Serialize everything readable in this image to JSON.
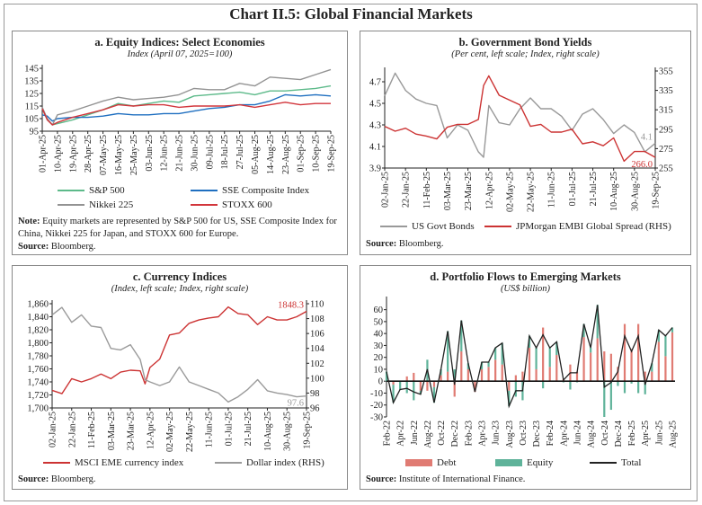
{
  "title": "Chart II.5: Global Financial Markets",
  "chart_data": [
    {
      "id": "a",
      "type": "line",
      "title": "a. Equity Indices: Select Economies",
      "subtitle": "Index (April 07, 2025=100)",
      "ylim": [
        95,
        145
      ],
      "yticks": [
        95,
        105,
        115,
        125,
        135,
        145
      ],
      "xticks": [
        "01-Apr-25",
        "10-Apr-25",
        "19-Apr-25",
        "28-Apr-25",
        "07-May-25",
        "16-May-25",
        "25-May-25",
        "03-Jun-25",
        "12-Jun-25",
        "21-Jun-25",
        "30-Jun-25",
        "09-Jul-25",
        "18-Jul-25",
        "27-Jul-25",
        "05-Aug-25",
        "14-Aug-25",
        "23-Aug-25",
        "01-Sep-25",
        "10-Sep-25",
        "19-Sep-25"
      ],
      "x": [
        "01-Apr-25",
        "04-Apr-25",
        "07-Apr-25",
        "10-Apr-25",
        "19-Apr-25",
        "28-Apr-25",
        "07-May-25",
        "16-May-25",
        "25-May-25",
        "03-Jun-25",
        "12-Jun-25",
        "21-Jun-25",
        "30-Jun-25",
        "09-Jul-25",
        "18-Jul-25",
        "27-Jul-25",
        "05-Aug-25",
        "14-Aug-25",
        "23-Aug-25",
        "01-Sep-25",
        "10-Sep-25",
        "19-Sep-25"
      ],
      "series": [
        {
          "name": "S&P 500",
          "color": "#5dba8a",
          "axis": "left",
          "values": [
            113,
            104,
            100,
            101,
            104,
            108,
            112,
            117,
            115,
            117,
            119,
            118,
            123,
            124,
            125,
            126,
            124,
            127,
            127,
            128,
            129,
            131
          ]
        },
        {
          "name": "SSE Composite Index",
          "color": "#1f6fc0",
          "axis": "left",
          "values": [
            108,
            107,
            103,
            105,
            106,
            106,
            107,
            109,
            108,
            108,
            109,
            109,
            111,
            113,
            114,
            116,
            116,
            119,
            124,
            123,
            124,
            123
          ]
        },
        {
          "name": "Nikkei 225",
          "color": "#939393",
          "axis": "left",
          "values": [
            114,
            105,
            100,
            108,
            111,
            115,
            119,
            122,
            120,
            121,
            122,
            124,
            129,
            128,
            128,
            133,
            131,
            138,
            137,
            136,
            140,
            144
          ]
        },
        {
          "name": "STOXX 600",
          "color": "#d2363c",
          "axis": "left",
          "values": [
            113,
            104,
            100,
            102,
            106,
            109,
            112,
            116,
            115,
            116,
            116,
            114,
            115,
            115,
            115,
            116,
            114,
            116,
            118,
            116,
            117,
            117
          ]
        }
      ],
      "note_label": "Note:",
      "note": "Equity markets are represented by S&P 500 for US, SSE Composite Index for China, Nikkei 225 for Japan, and STOXX 600 for Europe.",
      "source_label": "Source:",
      "source": "Bloomberg."
    },
    {
      "id": "b",
      "type": "line",
      "title": "b. Government Bond Yields",
      "subtitle": "(Per cent, left scale; Index, right scale)",
      "ylim": [
        3.9,
        4.8
      ],
      "yticks": [
        3.9,
        4.1,
        4.3,
        4.5,
        4.7
      ],
      "y2lim": [
        255,
        355
      ],
      "y2ticks": [
        255,
        275,
        295,
        315,
        335,
        355
      ],
      "xticks": [
        "02-Jan-25",
        "22-Jan-25",
        "11-Feb-25",
        "03-Mar-25",
        "23-Mar-25",
        "12-Apr-25",
        "02-May-25",
        "22-May-25",
        "11-Jun-25",
        "01-Jul-25",
        "21-Jul-25",
        "10-Aug-25",
        "30-Aug-25",
        "19-Sep-25"
      ],
      "x": [
        "02-Jan-25",
        "12-Jan-25",
        "22-Jan-25",
        "01-Feb-25",
        "11-Feb-25",
        "21-Feb-25",
        "03-Mar-25",
        "13-Mar-25",
        "23-Mar-25",
        "02-Apr-25",
        "07-Apr-25",
        "12-Apr-25",
        "22-Apr-25",
        "02-May-25",
        "12-May-25",
        "22-May-25",
        "01-Jun-25",
        "11-Jun-25",
        "21-Jun-25",
        "01-Jul-25",
        "11-Jul-25",
        "21-Jul-25",
        "31-Jul-25",
        "10-Aug-25",
        "20-Aug-25",
        "30-Aug-25",
        "09-Sep-25",
        "19-Sep-25"
      ],
      "series": [
        {
          "name": "US Govt Bonds",
          "color": "#999999",
          "axis": "left",
          "end_label": "4.1",
          "values": [
            4.57,
            4.78,
            4.62,
            4.54,
            4.5,
            4.48,
            4.18,
            4.3,
            4.25,
            4.05,
            4.0,
            4.48,
            4.32,
            4.3,
            4.45,
            4.55,
            4.45,
            4.45,
            4.38,
            4.25,
            4.4,
            4.45,
            4.35,
            4.22,
            4.3,
            4.23,
            4.05,
            4.13
          ]
        },
        {
          "name": "JPMorgan EMBI Global Spread (RHS)",
          "color": "#cc3333",
          "axis": "right",
          "end_label": "266.0",
          "values": [
            298,
            293,
            296,
            290,
            288,
            285,
            297,
            300,
            300,
            305,
            340,
            350,
            330,
            325,
            320,
            298,
            300,
            292,
            292,
            295,
            280,
            282,
            278,
            286,
            262,
            272,
            272,
            266
          ]
        }
      ],
      "source_label": "Source:",
      "source": "Bloomberg."
    },
    {
      "id": "c",
      "type": "line",
      "title": "c. Currency Indices",
      "subtitle": "(Index, left scale; Index, right scale)",
      "ylim": [
        1700,
        1860
      ],
      "yticks": [
        "1,700",
        "1,720",
        "1,740",
        "1,760",
        "1,780",
        "1,800",
        "1,820",
        "1,840",
        "1,860"
      ],
      "y2lim": [
        96,
        110
      ],
      "y2ticks": [
        96,
        98,
        100,
        102,
        104,
        106,
        108,
        110
      ],
      "xticks": [
        "02-Jan-25",
        "22-Jan-25",
        "11-Feb-25",
        "03-Mar-25",
        "23-Mar-25",
        "12-Apr-25",
        "02-May-25",
        "22-May-25",
        "11-Jun-25",
        "01-Jul-25",
        "21-Jul-25",
        "10-Aug-25",
        "30-Aug-25",
        "19-Sep-25"
      ],
      "x": [
        "02-Jan-25",
        "12-Jan-25",
        "22-Jan-25",
        "01-Feb-25",
        "11-Feb-25",
        "21-Feb-25",
        "03-Mar-25",
        "13-Mar-25",
        "23-Mar-25",
        "02-Apr-25",
        "07-Apr-25",
        "12-Apr-25",
        "22-Apr-25",
        "02-May-25",
        "12-May-25",
        "22-May-25",
        "01-Jun-25",
        "11-Jun-25",
        "21-Jun-25",
        "01-Jul-25",
        "11-Jul-25",
        "21-Jul-25",
        "31-Jul-25",
        "10-Aug-25",
        "20-Aug-25",
        "30-Aug-25",
        "09-Sep-25",
        "19-Sep-25"
      ],
      "series": [
        {
          "name": "MSCI EME currency index",
          "color": "#cc3333",
          "axis": "left",
          "end_label": "1848.3",
          "values": [
            1727,
            1722,
            1745,
            1740,
            1745,
            1752,
            1745,
            1755,
            1758,
            1757,
            1737,
            1762,
            1775,
            1812,
            1815,
            1830,
            1835,
            1838,
            1840,
            1855,
            1845,
            1843,
            1828,
            1840,
            1835,
            1835,
            1840,
            1848.3
          ]
        },
        {
          "name": "Dollar index (RHS)",
          "color": "#9a9a9a",
          "axis": "right",
          "end_label": "97.6",
          "values": [
            108.5,
            109.5,
            107.5,
            108.5,
            107.0,
            106.8,
            104.0,
            103.8,
            104.5,
            102.5,
            99.8,
            99.5,
            99.0,
            99.5,
            101.5,
            99.5,
            99.0,
            98.5,
            98.0,
            96.8,
            97.5,
            98.5,
            99.8,
            98.3,
            98.0,
            97.8,
            97.5,
            97.6
          ]
        }
      ],
      "source_label": "Source:",
      "source": "Bloomberg."
    },
    {
      "id": "d",
      "type": "bar",
      "title": "d. Portfolio Flows to Emerging Markets",
      "subtitle": "(US$ billion)",
      "ylim": [
        -30,
        65
      ],
      "yticks": [
        -30,
        -20,
        -10,
        0,
        10,
        20,
        30,
        40,
        50,
        60
      ],
      "categories": [
        "Feb-22",
        "Mar-22",
        "Apr-22",
        "May-22",
        "Jun-22",
        "Jul-22",
        "Aug-22",
        "Sep-22",
        "Oct-22",
        "Nov-22",
        "Dec-22",
        "Jan-23",
        "Feb-23",
        "Mar-23",
        "Apr-23",
        "May-23",
        "Jun-23",
        "Jul-23",
        "Aug-23",
        "Sep-23",
        "Oct-23",
        "Nov-23",
        "Dec-23",
        "Jan-24",
        "Feb-24",
        "Mar-24",
        "Apr-24",
        "May-24",
        "Jun-24",
        "Jul-24",
        "Aug-24",
        "Sep-24",
        "Oct-24",
        "Nov-24",
        "Dec-24",
        "Jan-25",
        "Feb-25",
        "Mar-25",
        "Apr-25",
        "May-25",
        "Jun-25",
        "Jul-25",
        "Aug-25"
      ],
      "xticks": [
        "Feb-22",
        "Apr-22",
        "Jun-22",
        "Aug-22",
        "Oct-22",
        "Dec-22",
        "Feb-23",
        "Apr-23",
        "Jun-23",
        "Aug-23",
        "Oct-23",
        "Dec-23",
        "Feb-24",
        "Apr-24",
        "Jun-24",
        "Aug-24",
        "Oct-24",
        "Dec-24",
        "Feb-25",
        "Apr-25",
        "Jun-25",
        "Aug-25"
      ],
      "series": [
        {
          "name": "Debt",
          "type": "bar",
          "color": "#e07b73",
          "values": [
            0,
            -3,
            0,
            4,
            7,
            -8,
            -8,
            -5,
            5,
            8,
            -13,
            25,
            10,
            -9,
            10,
            12,
            18,
            14,
            -8,
            5,
            8,
            28,
            10,
            45,
            12,
            22,
            2,
            14,
            8,
            37,
            24,
            36,
            25,
            23,
            12,
            48,
            27,
            48,
            8,
            8,
            33,
            21,
            41
          ]
        },
        {
          "name": "Equity",
          "type": "bar",
          "color": "#5fb39a",
          "values": [
            8,
            -15,
            -7,
            -10,
            -16,
            -3,
            18,
            -13,
            5,
            34,
            10,
            26,
            5,
            0,
            6,
            4,
            10,
            18,
            -13,
            -13,
            -16,
            10,
            18,
            -6,
            16,
            11,
            -1,
            -7,
            -1,
            11,
            4,
            28,
            -30,
            -24,
            -4,
            -10,
            -2,
            -10,
            -11,
            7,
            10,
            17,
            4
          ]
        },
        {
          "name": "Total",
          "type": "line",
          "color": "#222222",
          "values": [
            8,
            -18,
            -7,
            -6,
            -9,
            -11,
            10,
            -18,
            10,
            42,
            -3,
            51,
            15,
            -9,
            16,
            16,
            28,
            32,
            -21,
            -8,
            -8,
            38,
            28,
            39,
            28,
            33,
            1,
            7,
            7,
            48,
            28,
            64,
            -5,
            -1,
            8,
            38,
            25,
            38,
            -3,
            15,
            43,
            38,
            45
          ]
        }
      ],
      "source_label": "Source:",
      "source": "Institute of International Finance."
    }
  ]
}
